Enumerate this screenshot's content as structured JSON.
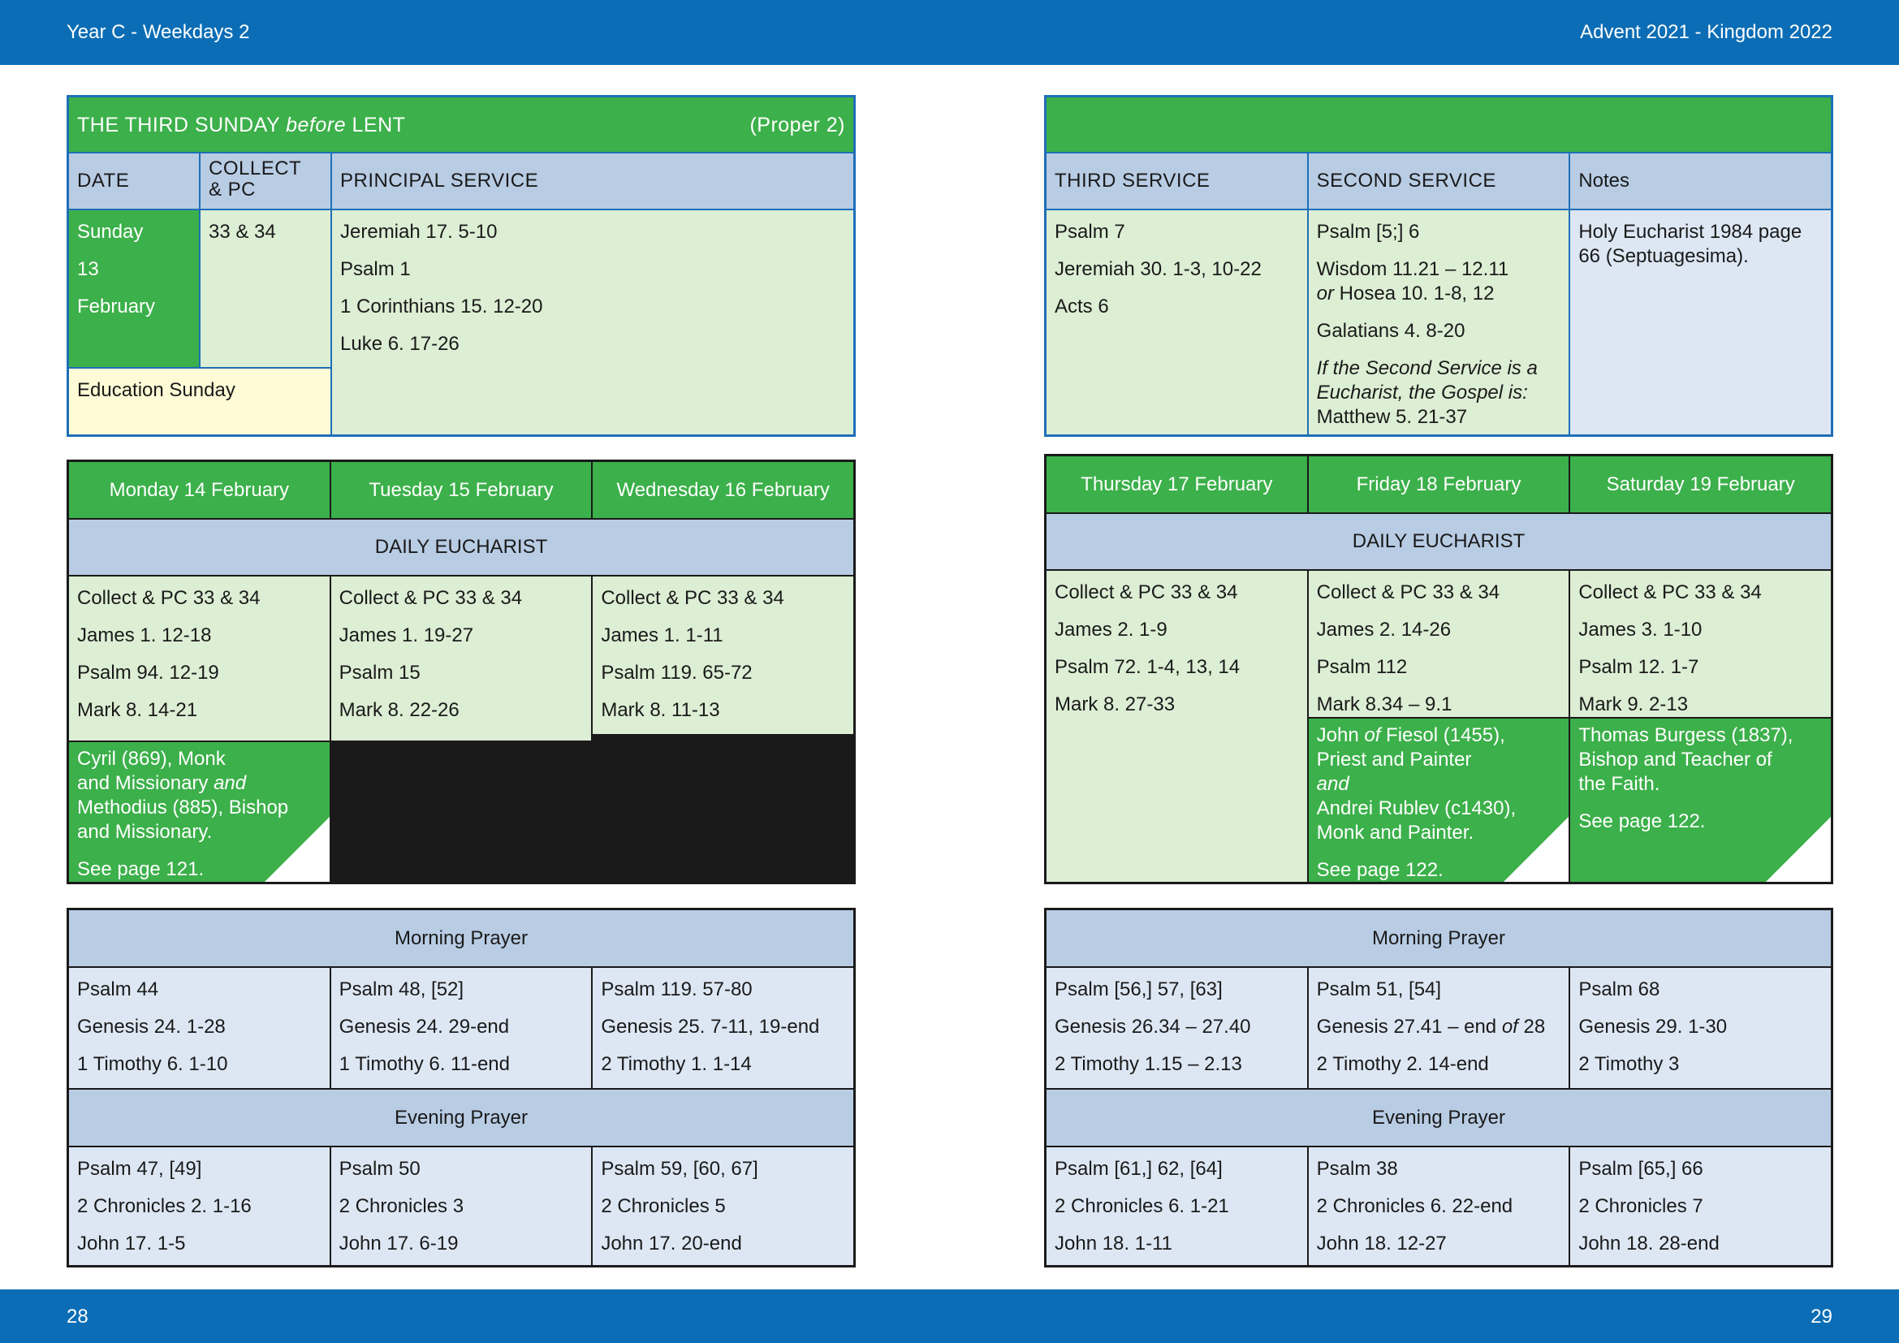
{
  "header": {
    "left": "Year C - Weekdays 2",
    "right": "Advent  2021 - Kingdom 2022"
  },
  "footer": {
    "left_page": "28",
    "right_page": "29"
  },
  "sunday": {
    "title_pre": "THE THIRD SUNDAY ",
    "title_em": "before",
    "title_post": " LENT",
    "proper": "(Proper 2)",
    "col_date": "DATE",
    "col_collect_1": "COLLECT",
    "col_collect_2": "& PC",
    "col_principal": "PRINCIPAL SERVICE",
    "date_day": "Sunday",
    "date_num": "13",
    "date_month": "February",
    "collect": "33 & 34",
    "principal": [
      "Jeremiah 17. 5-10",
      "Psalm 1",
      "1 Corinthians 15. 12-20",
      "Luke 6. 17-26"
    ],
    "education": "Education Sunday",
    "col_third": "THIRD SERVICE",
    "col_second": "SECOND SERVICE",
    "col_notes": "Notes",
    "third": [
      "Psalm 7",
      "Jeremiah 30. 1-3, 10-22",
      "Acts 6"
    ],
    "second_psalm": "Psalm [5;] 6",
    "second_reading1": "Wisdom 11.21 – 12.11",
    "second_or": "or",
    "second_reading2": " Hosea 10. 1-8, 12",
    "second_reading3": "Galatians 4. 8-20",
    "second_note": "If the Second Service is a Eucharist, the Gospel is:",
    "second_gospel": "Matthew 5. 21-37",
    "notes": "Holy Eucharist 1984 page 66 (Septuagesima)."
  },
  "left_week": {
    "days": [
      "Monday 14 February",
      "Tuesday 15 February",
      "Wednesday 16 February"
    ],
    "eucharist_label": "DAILY EUCHARIST",
    "eucharist": [
      [
        "Collect & PC 33 & 34",
        "James 1. 1-11",
        "Psalm 119. 65-72",
        "Mark 8. 11-13"
      ],
      [
        "Collect & PC 33 & 34",
        "James 1. 12-18",
        "Psalm 94. 12-19",
        "Mark 8. 14-21"
      ],
      [
        "Collect & PC 33 & 34",
        "James 1. 19-27",
        "Psalm 15",
        "Mark 8. 22-26"
      ]
    ],
    "saint_line1": "Cyril (869), Monk",
    "saint_line2_pre": "and Missionary ",
    "saint_line2_em": "and",
    "saint_line3": "Methodius (885), Bishop",
    "saint_line4": "and Missionary.",
    "saint_see": "See page 121.",
    "morning_label": "Morning Prayer",
    "morning": [
      [
        "Psalm 44",
        "Genesis 24. 1-28",
        "1 Timothy 6. 1-10"
      ],
      [
        "Psalm 48, [52]",
        "Genesis 24. 29-end",
        "1 Timothy 6. 11-end"
      ],
      [
        "Psalm 119. 57-80",
        "Genesis 25. 7-11, 19-end",
        "2 Timothy 1. 1-14"
      ]
    ],
    "evening_label": "Evening Prayer",
    "evening": [
      [
        "Psalm 47, [49]",
        "2 Chronicles 2. 1-16",
        "John 17. 1-5"
      ],
      [
        "Psalm 50",
        "2 Chronicles 3",
        "John 17. 6-19"
      ],
      [
        "Psalm 59, [60, 67]",
        "2 Chronicles 5",
        "John 17. 20-end"
      ]
    ]
  },
  "right_week": {
    "days": [
      "Thursday 17 February",
      "Friday 18 February",
      "Saturday 19 February"
    ],
    "eucharist_label": "DAILY EUCHARIST",
    "eucharist": [
      [
        "Collect & PC 33 & 34",
        "James 2. 1-9",
        "Psalm 72. 1-4, 13, 14",
        "Mark 8. 27-33"
      ],
      [
        "Collect & PC 33 & 34",
        "James 2. 14-26",
        "Psalm 112",
        "Mark 8.34 – 9.1"
      ],
      [
        "Collect & PC 33 & 34",
        "James 3. 1-10",
        "Psalm 12. 1-7",
        "Mark 9. 2-13"
      ]
    ],
    "fri_saint_1_pre": "John ",
    "fri_saint_1_em": "of",
    "fri_saint_1_post": " Fiesol (1455),",
    "fri_saint_2": "Priest and Painter",
    "fri_saint_3": "and",
    "fri_saint_4": "Andrei Rublev (c1430),",
    "fri_saint_5": "Monk and Painter.",
    "fri_see": "See page 122.",
    "sat_saint_1": "Thomas Burgess (1837),",
    "sat_saint_2": "Bishop and Teacher of",
    "sat_saint_3": "the Faith.",
    "sat_see": "See page 122.",
    "morning_label": "Morning Prayer",
    "morning": [
      [
        "Psalm [56,] 57, [63]",
        "Genesis 26.34 – 27.40",
        "2 Timothy 1.15 – 2.13"
      ],
      [
        "Psalm 51, [54]",
        "Genesis 27.41 – end ",
        "2 Timothy 2. 14-end"
      ],
      [
        "Psalm 68",
        "Genesis 29. 1-30",
        "2 Timothy 3"
      ]
    ],
    "morning_genesis_em": "of",
    "morning_genesis_post": " 28",
    "evening_label": "Evening Prayer",
    "evening": [
      [
        "Psalm [61,] 62, [64]",
        "2 Chronicles 6. 1-21",
        "John 18. 1-11"
      ],
      [
        "Psalm 38",
        "2 Chronicles 6. 22-end",
        "John 18. 12-27"
      ],
      [
        "Psalm [65,] 66",
        "2 Chronicles 7",
        "John 18. 28-end"
      ]
    ]
  }
}
